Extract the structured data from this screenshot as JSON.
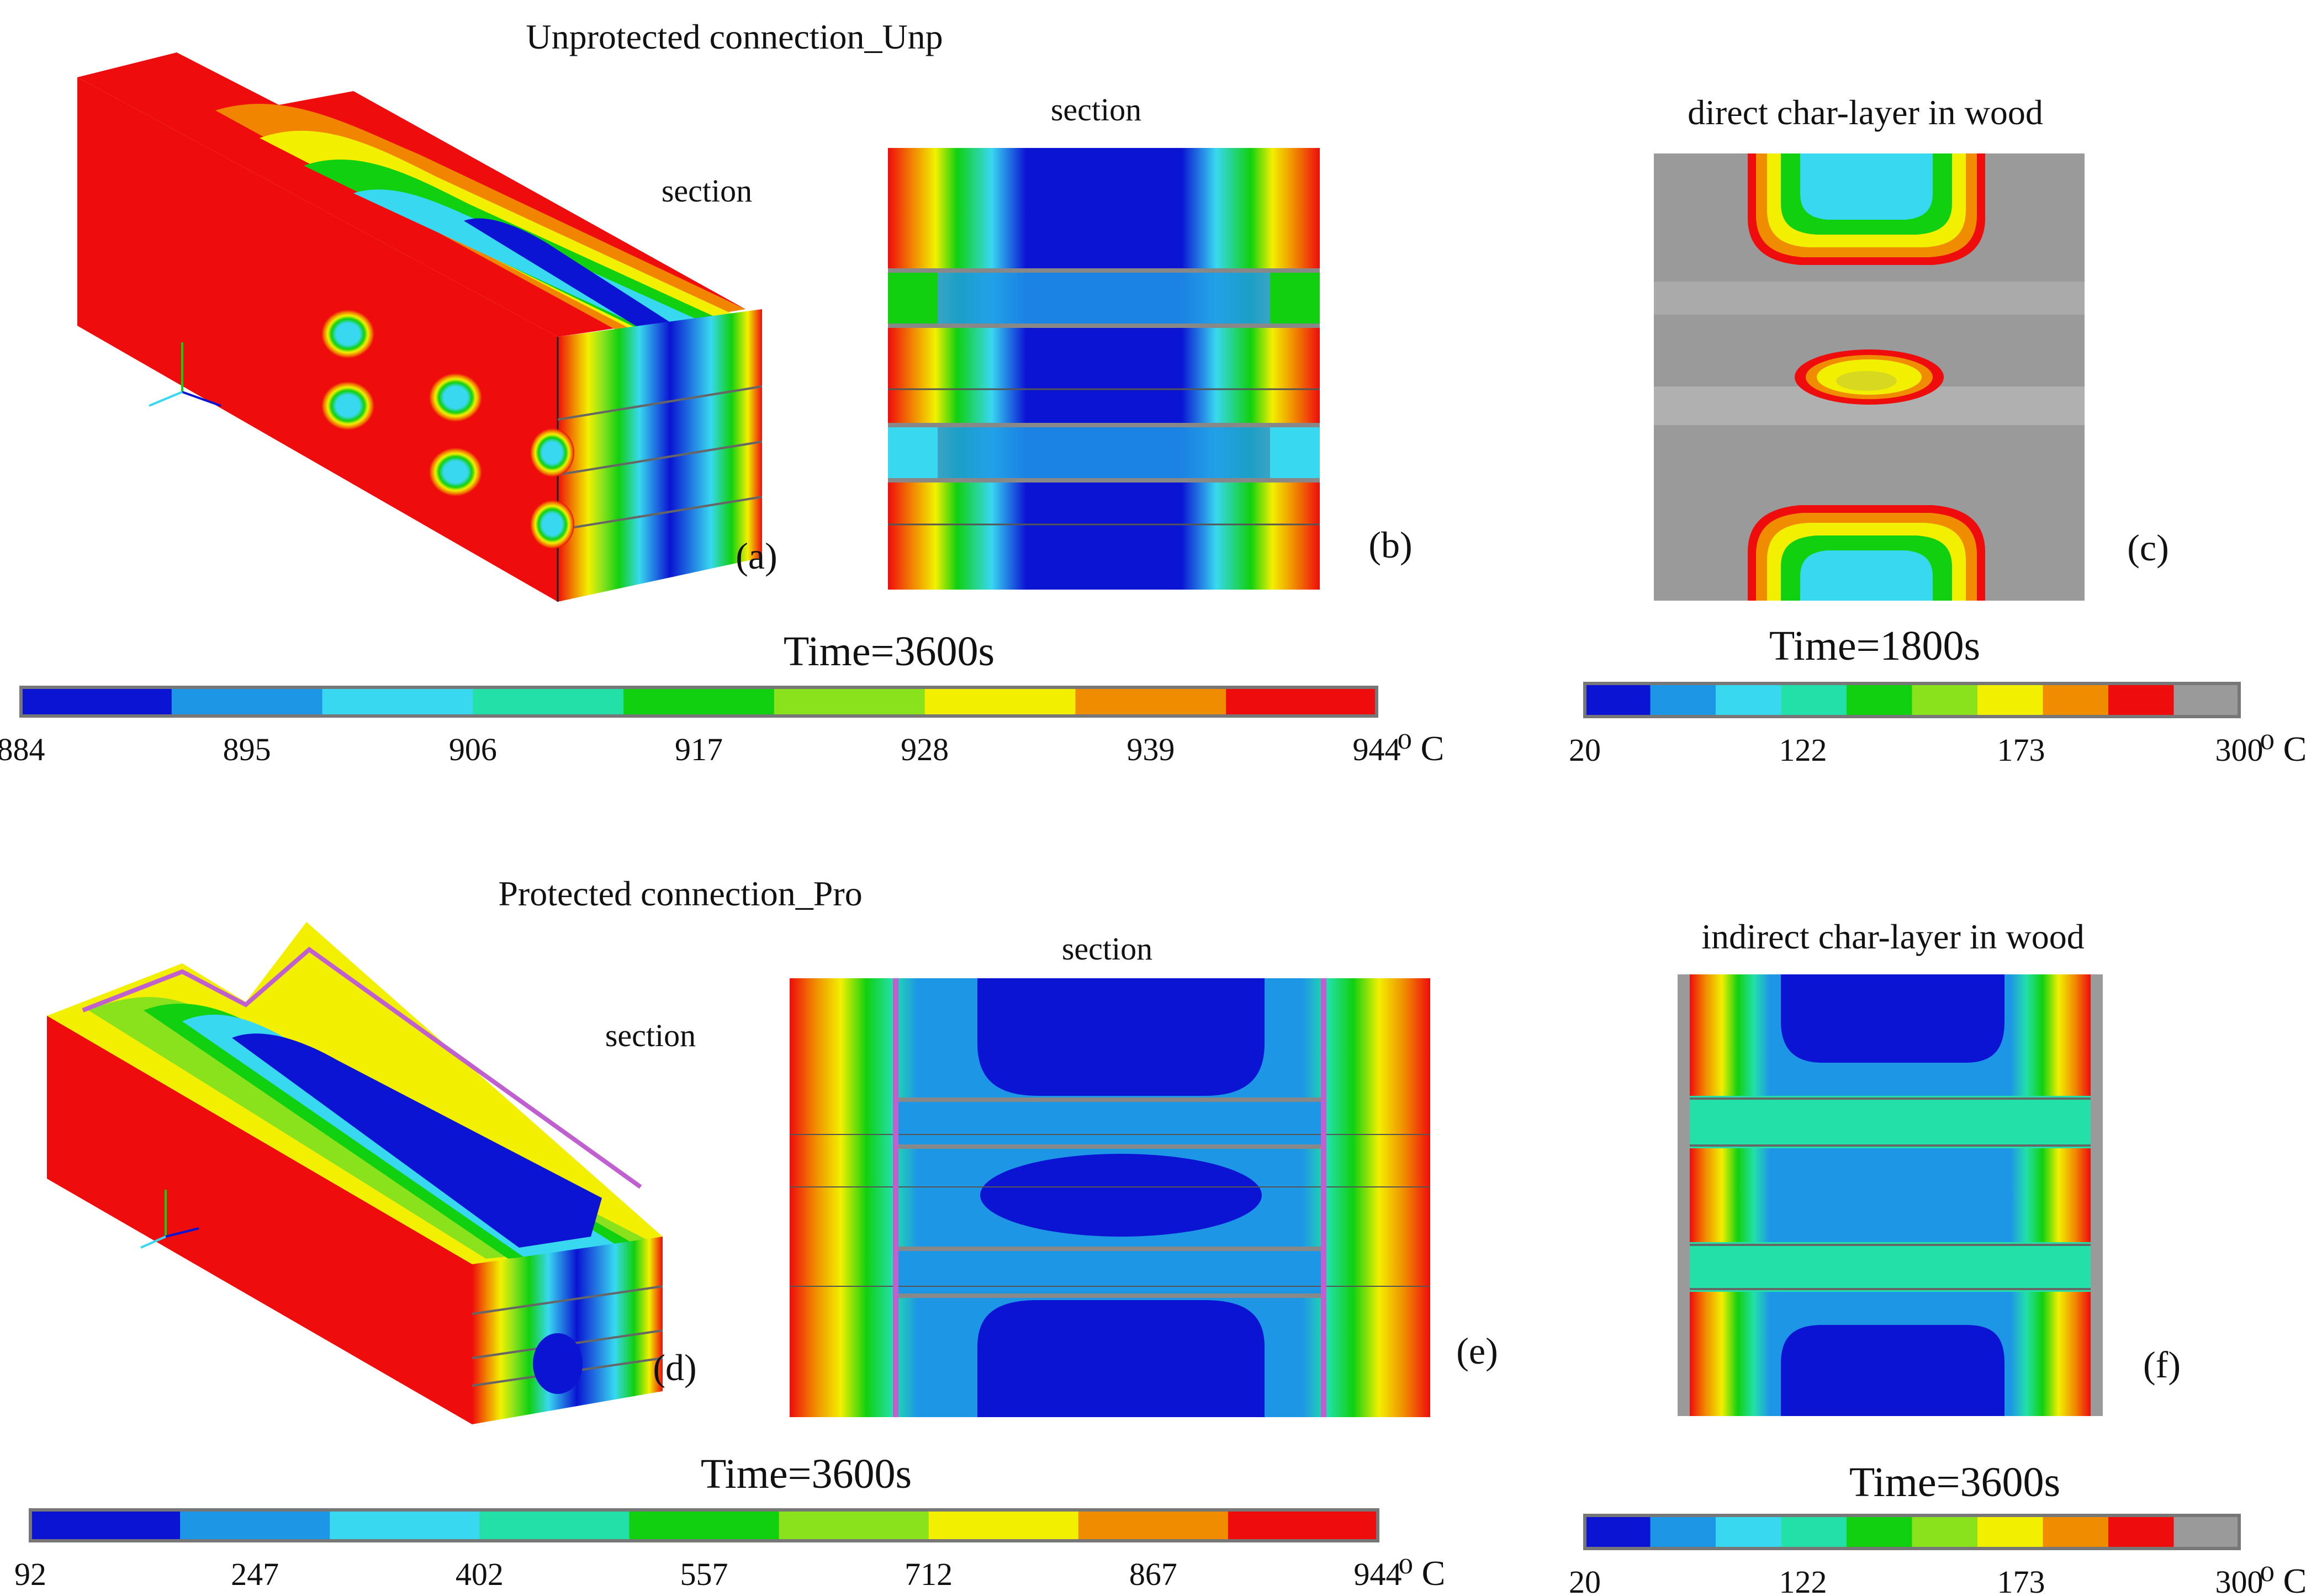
{
  "figure": {
    "top": {
      "title": "Unprotected connection_Unp",
      "section_label_a": "section",
      "section_label_b": "section",
      "char_title": "direct char-layer in wood",
      "label_a": "(a)",
      "label_b": "(b)",
      "label_c": "(c)",
      "time_main": "Time=3600s",
      "time_char": "Time=1800s",
      "scale_main": {
        "ticks": [
          "884",
          "895",
          "906",
          "917",
          "928",
          "939",
          "944"
        ],
        "unit": "⁰ C",
        "colors": [
          "#0a14d2",
          "#1e96e6",
          "#38d8f0",
          "#22e0a8",
          "#10d010",
          "#8ae21c",
          "#f2f000",
          "#f08c00",
          "#ee0c0c"
        ]
      },
      "scale_char": {
        "ticks": [
          "20",
          "122",
          "173",
          "300"
        ],
        "unit": "⁰ C",
        "colors": [
          "#0a14d2",
          "#1e96e6",
          "#38d8f0",
          "#22e0a8",
          "#10d010",
          "#8ae21c",
          "#f2f000",
          "#f08c00",
          "#ee0c0c",
          "#9a9a9a"
        ]
      }
    },
    "bottom": {
      "title": "Protected connection_Pro",
      "section_label_d": "section",
      "section_label_e": "section",
      "char_title": "indirect char-layer in wood",
      "label_d": "(d)",
      "label_e": "(e)",
      "label_f": "(f)",
      "time_main": "Time=3600s",
      "time_char": "Time=3600s",
      "scale_main": {
        "ticks": [
          "92",
          "247",
          "402",
          "557",
          "712",
          "867",
          "944"
        ],
        "unit": "⁰ C",
        "colors": [
          "#0a14d2",
          "#1e96e6",
          "#38d8f0",
          "#22e0a8",
          "#10d010",
          "#8ae21c",
          "#f2f000",
          "#f08c00",
          "#ee0c0c"
        ]
      },
      "scale_char": {
        "ticks": [
          "20",
          "122",
          "173",
          "300"
        ],
        "unit": "⁰ C",
        "colors": [
          "#0a14d2",
          "#1e96e6",
          "#38d8f0",
          "#22e0a8",
          "#10d010",
          "#8ae21c",
          "#f2f000",
          "#f08c00",
          "#ee0c0c",
          "#9a9a9a"
        ]
      }
    }
  }
}
